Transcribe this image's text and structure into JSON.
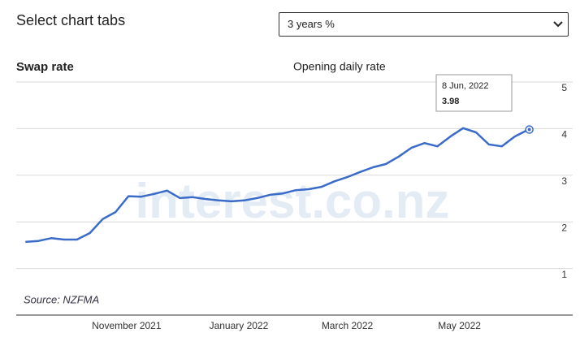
{
  "header": {
    "title": "Select chart tabs",
    "selected_option": "3 years %"
  },
  "chart_data": {
    "type": "line",
    "title": "Swap rate",
    "subtitle": "Opening daily rate",
    "source": "Source: NZFMA",
    "watermark": "interest.co.nz",
    "x": [
      "2021-09-07",
      "2021-09-14",
      "2021-09-21",
      "2021-09-28",
      "2021-10-05",
      "2021-10-12",
      "2021-10-19",
      "2021-10-26",
      "2021-11-02",
      "2021-11-09",
      "2021-11-16",
      "2021-11-23",
      "2021-11-30",
      "2021-12-07",
      "2021-12-14",
      "2021-12-21",
      "2021-12-28",
      "2022-01-04",
      "2022-01-11",
      "2022-01-18",
      "2022-01-25",
      "2022-02-01",
      "2022-02-08",
      "2022-02-15",
      "2022-02-22",
      "2022-03-01",
      "2022-03-08",
      "2022-03-15",
      "2022-03-22",
      "2022-03-29",
      "2022-04-05",
      "2022-04-12",
      "2022-04-19",
      "2022-04-26",
      "2022-05-03",
      "2022-05-10",
      "2022-05-17",
      "2022-05-24",
      "2022-05-31",
      "2022-06-07",
      "2022-06-08"
    ],
    "values": [
      1.57,
      1.59,
      1.65,
      1.62,
      1.62,
      1.76,
      2.06,
      2.21,
      2.55,
      2.54,
      2.6,
      2.67,
      2.51,
      2.53,
      2.49,
      2.46,
      2.44,
      2.46,
      2.51,
      2.58,
      2.61,
      2.68,
      2.7,
      2.75,
      2.87,
      2.96,
      3.07,
      3.17,
      3.24,
      3.4,
      3.59,
      3.69,
      3.62,
      3.83,
      4.01,
      3.92,
      3.66,
      3.62,
      3.83,
      3.97,
      3.98
    ],
    "color": "#3a6bc8",
    "xlim": [
      "2021-09-02",
      "2022-06-17"
    ],
    "xticks": [
      {
        "value": "2021-11-01",
        "label": "November 2021"
      },
      {
        "value": "2022-01-01",
        "label": "January 2022"
      },
      {
        "value": "2022-03-01",
        "label": "March 2022"
      },
      {
        "value": "2022-05-01",
        "label": "May 2022"
      }
    ],
    "ylim": [
      0,
      5
    ],
    "yticks": [
      1,
      2,
      3,
      4,
      5
    ],
    "grid": true,
    "tooltip_date": "8 Jun, 2022"
  }
}
